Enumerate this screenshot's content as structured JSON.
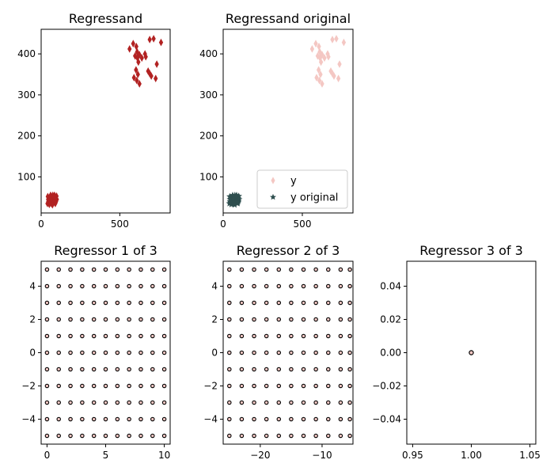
{
  "chart_data": [
    {
      "type": "scatter",
      "title": "Regressand",
      "xlim": [
        0,
        820
      ],
      "ylim": [
        12,
        460
      ],
      "xticks": [
        0,
        500
      ],
      "yticks": [
        100,
        200,
        300,
        400
      ],
      "series": [
        {
          "color": "#b22222",
          "marker": "diamond",
          "points": [
            [
              562,
              412
            ],
            [
              585,
              425
            ],
            [
              597,
              395
            ],
            [
              605,
              418
            ],
            [
              610,
              405
            ],
            [
              618,
              380
            ],
            [
              612,
              390
            ],
            [
              625,
              398
            ],
            [
              640,
              390
            ],
            [
              660,
              400
            ],
            [
              665,
              393
            ],
            [
              690,
              435
            ],
            [
              715,
              437
            ],
            [
              735,
              375
            ],
            [
              762,
              428
            ],
            [
              590,
              342
            ],
            [
              603,
              361
            ],
            [
              608,
              335
            ],
            [
              615,
              350
            ],
            [
              625,
              327
            ],
            [
              680,
              358
            ],
            [
              690,
              352
            ],
            [
              700,
              346
            ],
            [
              728,
              340
            ]
          ]
        },
        {
          "color": "#b22222",
          "marker": "diamond",
          "cluster": true,
          "points": [
            [
              40,
              35
            ],
            [
              45,
              40
            ],
            [
              50,
              45
            ],
            [
              55,
              50
            ],
            [
              60,
              55
            ],
            [
              65,
              35
            ],
            [
              70,
              40
            ],
            [
              75,
              45
            ],
            [
              80,
              50
            ],
            [
              85,
              55
            ],
            [
              90,
              35
            ],
            [
              95,
              40
            ],
            [
              100,
              45
            ],
            [
              42,
              52
            ],
            [
              48,
              37
            ],
            [
              58,
              42
            ],
            [
              68,
              48
            ],
            [
              78,
              38
            ],
            [
              88,
              44
            ],
            [
              98,
              53
            ],
            [
              44,
              45
            ],
            [
              54,
              38
            ],
            [
              64,
              50
            ],
            [
              74,
              55
            ],
            [
              84,
              42
            ],
            [
              94,
              48
            ],
            [
              52,
              33
            ],
            [
              62,
              47
            ],
            [
              72,
              32
            ],
            [
              82,
              52
            ],
            [
              92,
              37
            ]
          ]
        }
      ]
    },
    {
      "type": "scatter",
      "title": "Regressand original",
      "xlim": [
        0,
        820
      ],
      "ylim": [
        12,
        460
      ],
      "xticks": [
        0,
        500
      ],
      "yticks": [
        100,
        200,
        300,
        400
      ],
      "legend": {
        "placement": "lower-right",
        "entries": [
          "y",
          "y original"
        ]
      },
      "series": [
        {
          "name": "y",
          "color": "#f4c7c3",
          "marker": "diamond",
          "points": [
            [
              562,
              412
            ],
            [
              585,
              425
            ],
            [
              597,
              395
            ],
            [
              605,
              418
            ],
            [
              610,
              405
            ],
            [
              618,
              380
            ],
            [
              612,
              390
            ],
            [
              625,
              398
            ],
            [
              640,
              390
            ],
            [
              660,
              400
            ],
            [
              665,
              393
            ],
            [
              690,
              435
            ],
            [
              715,
              437
            ],
            [
              735,
              375
            ],
            [
              762,
              428
            ],
            [
              590,
              342
            ],
            [
              603,
              361
            ],
            [
              608,
              335
            ],
            [
              615,
              350
            ],
            [
              625,
              327
            ],
            [
              680,
              358
            ],
            [
              690,
              352
            ],
            [
              700,
              346
            ],
            [
              728,
              340
            ]
          ]
        },
        {
          "name": "y original",
          "color": "#2f4f4f",
          "marker": "star",
          "points": [
            [
              40,
              35
            ],
            [
              45,
              40
            ],
            [
              50,
              45
            ],
            [
              55,
              50
            ],
            [
              60,
              55
            ],
            [
              65,
              35
            ],
            [
              70,
              40
            ],
            [
              75,
              45
            ],
            [
              80,
              50
            ],
            [
              85,
              55
            ],
            [
              90,
              35
            ],
            [
              95,
              40
            ],
            [
              100,
              45
            ],
            [
              42,
              52
            ],
            [
              48,
              37
            ],
            [
              58,
              42
            ],
            [
              68,
              48
            ],
            [
              78,
              38
            ],
            [
              88,
              44
            ],
            [
              98,
              53
            ],
            [
              44,
              45
            ],
            [
              54,
              38
            ],
            [
              64,
              50
            ],
            [
              74,
              55
            ],
            [
              84,
              42
            ],
            [
              94,
              48
            ],
            [
              52,
              33
            ],
            [
              62,
              47
            ],
            [
              72,
              32
            ],
            [
              82,
              52
            ],
            [
              92,
              37
            ]
          ]
        }
      ]
    },
    {
      "type": "scatter",
      "title": "Regressor 1 of 3",
      "xlim": [
        -0.5,
        10.5
      ],
      "ylim": [
        -5.5,
        5.5
      ],
      "xticks": [
        0,
        5,
        10
      ],
      "yticks": [
        -4,
        -2,
        0,
        2,
        4
      ],
      "grid_points": {
        "x": [
          0,
          1,
          2,
          3,
          4,
          5,
          6,
          7,
          8,
          9,
          10
        ],
        "y": [
          -5,
          -4,
          -3,
          -2,
          -1,
          0,
          1,
          2,
          3,
          4,
          5
        ]
      },
      "marker": "circle",
      "edge_color": "#000000",
      "face_color": "#f4c7c3"
    },
    {
      "type": "scatter",
      "title": "Regressor 2 of 3",
      "xlim": [
        -26,
        -5
      ],
      "ylim": [
        -5.5,
        5.5
      ],
      "xticks": [
        -20,
        -10
      ],
      "yticks": [
        -4,
        -2,
        0,
        2,
        4
      ],
      "grid_points": {
        "x": [
          -25,
          -23,
          -21,
          -19,
          -17,
          -15,
          -13,
          -11,
          -9,
          -7,
          -5.5
        ],
        "y": [
          -5,
          -4,
          -3,
          -2,
          -1,
          0,
          1,
          2,
          3,
          4,
          5
        ]
      },
      "marker": "circle",
      "edge_color": "#000000",
      "face_color": "#f4c7c3"
    },
    {
      "type": "scatter",
      "title": "Regressor 3 of 3",
      "xlim": [
        0.945,
        1.055
      ],
      "ylim": [
        -0.055,
        0.055
      ],
      "xticks": [
        0.95,
        1.0,
        1.05
      ],
      "yticks": [
        -0.04,
        -0.02,
        0.0,
        0.02,
        0.04
      ],
      "xtick_labels": [
        "0.95",
        "1.00",
        "1.05"
      ],
      "ytick_labels": [
        "−0.04",
        "−0.02",
        "0.00",
        "0.02",
        "0.04"
      ],
      "points": [
        [
          1.0,
          0.0
        ]
      ],
      "marker": "circle",
      "edge_color": "#000000",
      "face_color": "#f4c7c3"
    }
  ]
}
